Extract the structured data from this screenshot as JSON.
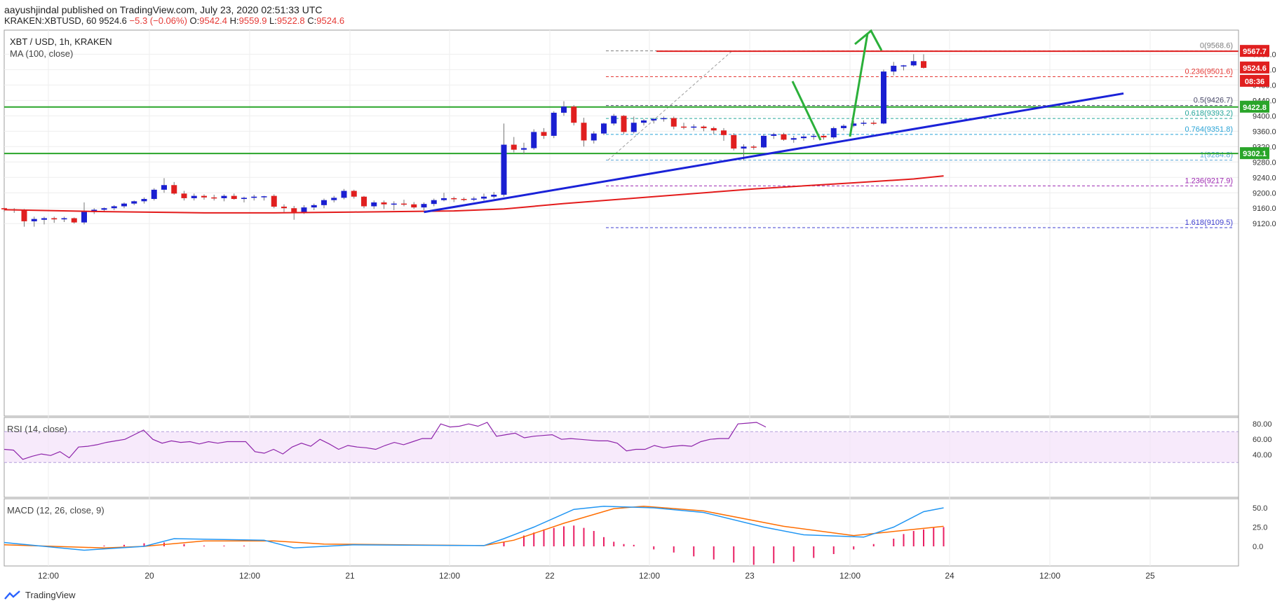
{
  "header": {
    "author": "aayushjindal",
    "published_text": "published on TradingView.com, July 23, 2020 02:51:33 UTC",
    "symbol_line": "KRAKEN:XBTUSD, 60",
    "last": "9524.6",
    "change": "−5.3 (−0.06%)",
    "open_label": "O:",
    "open": "9542.4",
    "high_label": "H:",
    "high": "9559.9",
    "low_label": "L:",
    "low": "9522.8",
    "close_label": "C:",
    "close": "9524.6"
  },
  "legend": {
    "title": "XBT / USD, 1h, KRAKEN",
    "ma": "MA (100, close)"
  },
  "colors": {
    "up": "#1a1fd1",
    "down": "#e01f1f",
    "ma": "#e31b1b",
    "trend": "#1a22d8",
    "support": "#2aa52a",
    "arrow": "#2bb03a",
    "rsi": "#8e24aa",
    "rsi_band": "#f3e1fa",
    "macd": "#2196f3",
    "signal": "#ff6d00",
    "hist_pos": "#e91e63"
  },
  "price_labels": {
    "resistance": "9567.7",
    "last": "9524.6",
    "countdown": "08:36",
    "support_upper": "9422.8",
    "support_lower": "9302.1"
  },
  "watermark": "TradingView",
  "chart_data": [
    {
      "type": "candlestick",
      "title": "XBT / USD, 1h, KRAKEN",
      "y_ticks": [
        9120,
        9160,
        9200,
        9240,
        9280,
        9320,
        9360,
        9400,
        9440,
        9480,
        9520,
        9560
      ],
      "x_ticks": [
        "12:00",
        "20",
        "12:00",
        "21",
        "12:00",
        "22",
        "12:00",
        "23",
        "12:00",
        "24",
        "12:00",
        "25"
      ],
      "candles": [
        [
          9160,
          9162,
          9150,
          9157
        ],
        [
          9157,
          9160,
          9148,
          9156
        ],
        [
          9156,
          9158,
          9112,
          9126
        ],
        [
          9126,
          9138,
          9112,
          9132
        ],
        [
          9130,
          9138,
          9118,
          9134
        ],
        [
          9134,
          9138,
          9122,
          9131
        ],
        [
          9131,
          9138,
          9124,
          9134
        ],
        [
          9134,
          9136,
          9120,
          9123
        ],
        [
          9123,
          9175,
          9118,
          9152
        ],
        [
          9150,
          9160,
          9145,
          9156
        ],
        [
          9156,
          9162,
          9150,
          9160
        ],
        [
          9160,
          9168,
          9155,
          9165
        ],
        [
          9165,
          9175,
          9160,
          9172
        ],
        [
          9172,
          9180,
          9168,
          9178
        ],
        [
          9178,
          9188,
          9172,
          9184
        ],
        [
          9184,
          9212,
          9180,
          9208
        ],
        [
          9208,
          9238,
          9200,
          9220
        ],
        [
          9220,
          9228,
          9195,
          9198
        ],
        [
          9198,
          9205,
          9180,
          9186
        ],
        [
          9186,
          9198,
          9180,
          9192
        ],
        [
          9192,
          9196,
          9182,
          9188
        ],
        [
          9188,
          9195,
          9180,
          9186
        ],
        [
          9186,
          9196,
          9178,
          9192
        ],
        [
          9192,
          9198,
          9182,
          9184
        ],
        [
          9184,
          9190,
          9175,
          9187
        ],
        [
          9187,
          9195,
          9180,
          9190
        ],
        [
          9190,
          9192,
          9180,
          9191
        ],
        [
          9192,
          9196,
          9160,
          9164
        ],
        [
          9164,
          9170,
          9150,
          9160
        ],
        [
          9160,
          9166,
          9130,
          9150
        ],
        [
          9150,
          9168,
          9145,
          9162
        ],
        [
          9162,
          9172,
          9155,
          9168
        ],
        [
          9168,
          9185,
          9160,
          9181
        ],
        [
          9181,
          9192,
          9175,
          9187
        ],
        [
          9187,
          9210,
          9183,
          9205
        ],
        [
          9205,
          9208,
          9185,
          9190
        ],
        [
          9190,
          9192,
          9160,
          9165
        ],
        [
          9165,
          9180,
          9158,
          9175
        ],
        [
          9175,
          9180,
          9158,
          9170
        ],
        [
          9170,
          9178,
          9155,
          9172
        ],
        [
          9172,
          9182,
          9165,
          9170
        ],
        [
          9170,
          9176,
          9158,
          9162
        ],
        [
          9162,
          9175,
          9155,
          9171
        ],
        [
          9171,
          9185,
          9165,
          9181
        ],
        [
          9181,
          9200,
          9178,
          9186
        ],
        [
          9186,
          9190,
          9176,
          9184
        ],
        [
          9184,
          9188,
          9178,
          9182
        ],
        [
          9182,
          9190,
          9178,
          9185
        ],
        [
          9185,
          9198,
          9180,
          9190
        ],
        [
          9190,
          9202,
          9185,
          9195
        ],
        [
          9195,
          9380,
          9190,
          9325
        ],
        [
          9325,
          9345,
          9305,
          9312
        ],
        [
          9312,
          9330,
          9300,
          9316
        ],
        [
          9316,
          9365,
          9312,
          9358
        ],
        [
          9358,
          9368,
          9340,
          9348
        ],
        [
          9348,
          9412,
          9342,
          9408
        ],
        [
          9408,
          9438,
          9400,
          9424
        ],
        [
          9424,
          9428,
          9375,
          9382
        ],
        [
          9382,
          9395,
          9320,
          9336
        ],
        [
          9336,
          9360,
          9328,
          9354
        ],
        [
          9354,
          9382,
          9350,
          9380
        ],
        [
          9380,
          9405,
          9375,
          9400
        ],
        [
          9400,
          9402,
          9352,
          9358
        ],
        [
          9358,
          9398,
          9354,
          9382
        ],
        [
          9382,
          9392,
          9375,
          9388
        ],
        [
          9388,
          9395,
          9380,
          9392
        ],
        [
          9392,
          9398,
          9385,
          9394
        ],
        [
          9394,
          9398,
          9365,
          9372
        ],
        [
          9372,
          9382,
          9365,
          9370
        ],
        [
          9370,
          9378,
          9362,
          9372
        ],
        [
          9372,
          9375,
          9360,
          9368
        ],
        [
          9368,
          9372,
          9352,
          9362
        ],
        [
          9362,
          9368,
          9335,
          9350
        ],
        [
          9350,
          9355,
          9310,
          9315
        ],
        [
          9315,
          9326,
          9284,
          9320
        ],
        [
          9320,
          9324,
          9312,
          9318
        ],
        [
          9318,
          9352,
          9316,
          9348
        ],
        [
          9348,
          9356,
          9340,
          9352
        ],
        [
          9352,
          9356,
          9335,
          9338
        ],
        [
          9338,
          9348,
          9330,
          9342
        ],
        [
          9342,
          9350,
          9335,
          9346
        ],
        [
          9346,
          9352,
          9338,
          9348
        ],
        [
          9348,
          9352,
          9338,
          9344
        ],
        [
          9344,
          9372,
          9340,
          9368
        ],
        [
          9368,
          9378,
          9362,
          9374
        ],
        [
          9374,
          9386,
          9370,
          9380
        ],
        [
          9380,
          9388,
          9374,
          9382
        ],
        [
          9382,
          9388,
          9376,
          9380
        ],
        [
          9380,
          9520,
          9378,
          9515
        ],
        [
          9515,
          9540,
          9505,
          9530
        ],
        [
          9530,
          9532,
          9518,
          9531
        ],
        [
          9531,
          9560,
          9528,
          9542
        ],
        [
          9542,
          9559.9,
          9522.8,
          9524.6
        ]
      ],
      "ma100": [
        [
          0,
          9156
        ],
        [
          10,
          9151
        ],
        [
          20,
          9148
        ],
        [
          27,
          9148
        ],
        [
          35,
          9150
        ],
        [
          45,
          9153
        ],
        [
          50,
          9158
        ],
        [
          56,
          9172
        ],
        [
          65,
          9190
        ],
        [
          75,
          9210
        ],
        [
          85,
          9226
        ],
        [
          91,
          9236
        ],
        [
          94,
          9244
        ]
      ],
      "support_levels": [
        9422.8,
        9302.1
      ],
      "resistance_level": 9567.7,
      "trendline": [
        [
          42,
          9150
        ],
        [
          112,
          9458
        ]
      ],
      "fibonacci": [
        {
          "label": "0(9568.6)",
          "value": 9568.6,
          "color": "#7d7d7d"
        },
        {
          "label": "0.236(9501.6)",
          "value": 9501.6,
          "color": "#e53935"
        },
        {
          "label": "0.5(9426.7)",
          "value": 9426.7,
          "color": "#4a4a6a"
        },
        {
          "label": "0.618(9393.2)",
          "value": 9393.2,
          "color": "#26a69a"
        },
        {
          "label": "0.764(9351.8)",
          "value": 9351.8,
          "color": "#29a3d6"
        },
        {
          "label": "1(9284.8)",
          "value": 9284.8,
          "color": "#5aa8d8"
        },
        {
          "label": "1.236(9217.9)",
          "value": 9217.9,
          "color": "#9c27b0"
        },
        {
          "label": "1.618(9109.5)",
          "value": 9109.5,
          "color": "#3f3fd0"
        }
      ]
    },
    {
      "type": "line",
      "title": "RSI (14, close)",
      "y_ticks": [
        40,
        60,
        80
      ],
      "band": [
        30,
        70
      ],
      "values": [
        47,
        46,
        34,
        38,
        41,
        39,
        44,
        36,
        50,
        51,
        53,
        56,
        58,
        60,
        66,
        72,
        60,
        55,
        58,
        56,
        57,
        54,
        57,
        55,
        57,
        57,
        57,
        44,
        42,
        47,
        41,
        50,
        55,
        51,
        60,
        54,
        47,
        52,
        50,
        49,
        47,
        52,
        56,
        53,
        57,
        61,
        61,
        80,
        76,
        77,
        80,
        77,
        82,
        64,
        66,
        68,
        62,
        64,
        65,
        66,
        60,
        61,
        60,
        59,
        58,
        58,
        55,
        45,
        47,
        47,
        52,
        49,
        51,
        52,
        51,
        57,
        60,
        61,
        61,
        80,
        81,
        82,
        76
      ]
    },
    {
      "type": "line",
      "title": "MACD (12, 26, close, 9)",
      "y_ticks": [
        0.0,
        25.0,
        50.0
      ],
      "macd": [
        [
          0,
          5
        ],
        [
          8,
          -5
        ],
        [
          14,
          0
        ],
        [
          17,
          10
        ],
        [
          26,
          8
        ],
        [
          29,
          -2
        ],
        [
          35,
          2
        ],
        [
          48,
          1
        ],
        [
          50,
          10
        ],
        [
          53,
          25
        ],
        [
          57,
          48
        ],
        [
          60,
          52
        ],
        [
          65,
          50
        ],
        [
          70,
          44
        ],
        [
          76,
          25
        ],
        [
          80,
          15
        ],
        [
          86,
          12
        ],
        [
          89,
          25
        ],
        [
          92,
          45
        ],
        [
          94,
          50
        ]
      ],
      "signal": [
        [
          0,
          2
        ],
        [
          10,
          -2
        ],
        [
          14,
          0
        ],
        [
          20,
          7
        ],
        [
          27,
          7
        ],
        [
          32,
          3
        ],
        [
          48,
          1
        ],
        [
          51,
          8
        ],
        [
          56,
          30
        ],
        [
          61,
          49
        ],
        [
          64,
          52
        ],
        [
          70,
          46
        ],
        [
          78,
          26
        ],
        [
          85,
          14
        ],
        [
          91,
          22
        ],
        [
          94,
          26
        ]
      ],
      "histogram": [
        [
          10,
          1
        ],
        [
          12,
          2
        ],
        [
          14,
          4
        ],
        [
          16,
          5
        ],
        [
          18,
          3
        ],
        [
          20,
          1
        ],
        [
          22,
          1
        ],
        [
          24,
          1
        ],
        [
          50,
          6
        ],
        [
          52,
          14
        ],
        [
          53,
          18
        ],
        [
          54,
          22
        ],
        [
          55,
          24
        ],
        [
          56,
          26
        ],
        [
          57,
          27
        ],
        [
          58,
          24
        ],
        [
          59,
          20
        ],
        [
          60,
          12
        ],
        [
          61,
          6
        ],
        [
          62,
          3
        ],
        [
          63,
          2
        ],
        [
          65,
          -4
        ],
        [
          67,
          -8
        ],
        [
          69,
          -13
        ],
        [
          71,
          -17
        ],
        [
          73,
          -21
        ],
        [
          75,
          -24
        ],
        [
          77,
          -22
        ],
        [
          79,
          -20
        ],
        [
          81,
          -15
        ],
        [
          83,
          -10
        ],
        [
          85,
          -4
        ],
        [
          87,
          3
        ],
        [
          89,
          10
        ],
        [
          90,
          16
        ],
        [
          91,
          20
        ],
        [
          92,
          22
        ],
        [
          93,
          24
        ],
        [
          94,
          25
        ]
      ]
    }
  ]
}
